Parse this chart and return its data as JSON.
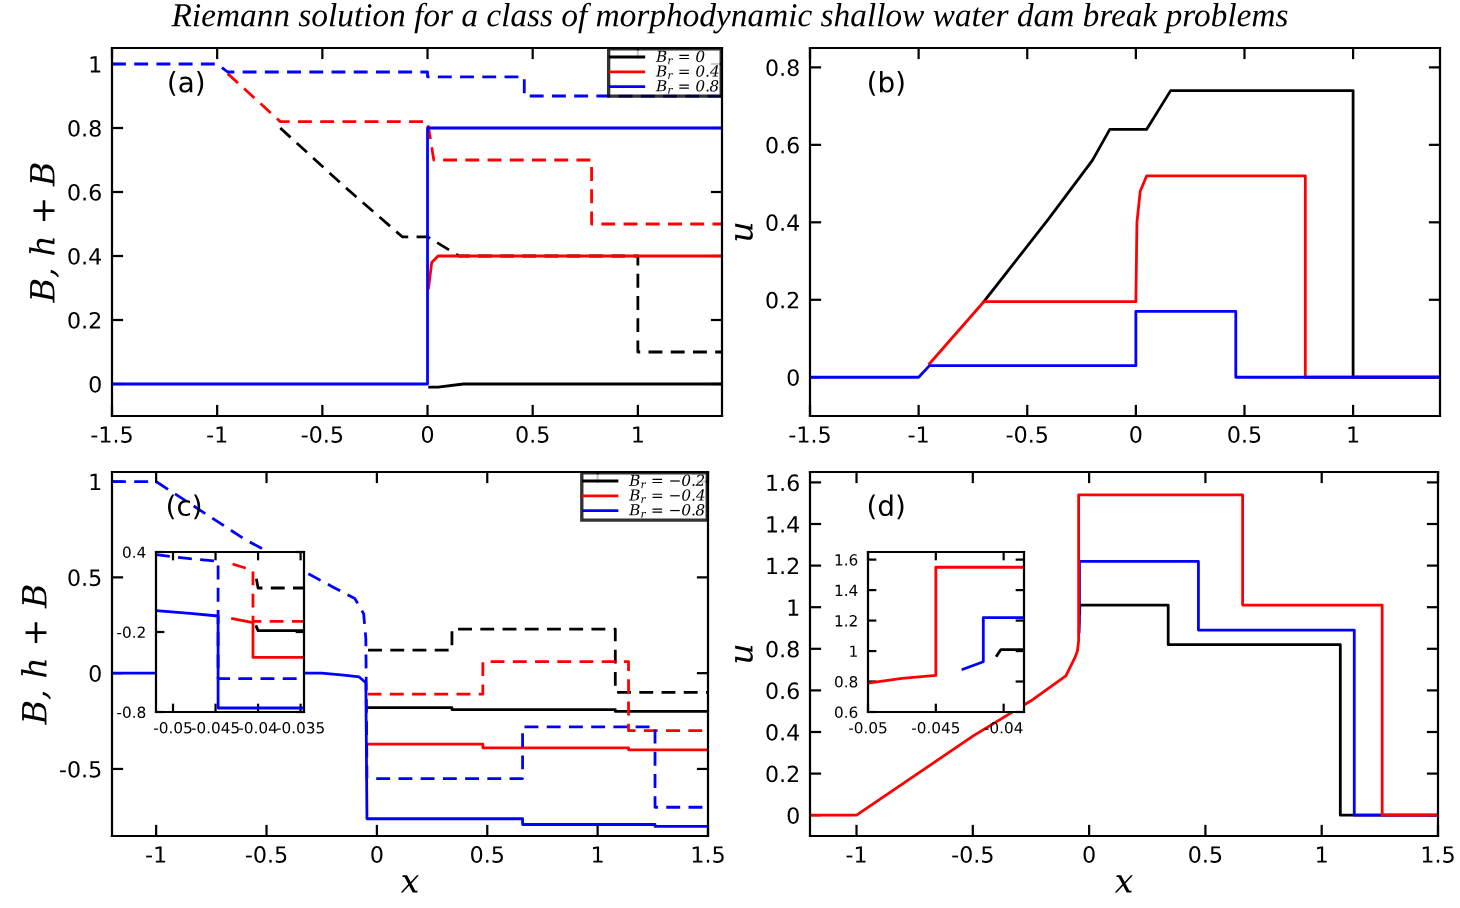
{
  "chart_data": [
    {
      "type": "other",
      "title": "Riemann solution for a class of morphodynamic shallow water dam break problems"
    },
    {
      "type": "line",
      "ylabel": "B, h + B",
      "annotations": [
        "(a)"
      ],
      "legend": "top right",
      "xlim": [
        -1.5,
        1.4
      ],
      "ylim": [
        -0.1,
        1.05
      ],
      "xticks": [
        -1.5,
        -1,
        -0.5,
        0,
        0.5,
        1
      ],
      "yticks": [
        0,
        0.2,
        0.4,
        0.6,
        0.8,
        1
      ],
      "series": [
        {
          "color": "#000000",
          "line_style": "dashed",
          "x": [
            -0.7,
            -0.4,
            -0.12,
            0,
            0.15,
            1,
            1,
            1.4
          ],
          "values": [
            0.8,
            0.62,
            0.46,
            0.46,
            0.4,
            0.4,
            0.1,
            0.1
          ]
        },
        {
          "name": "B$_{r}$ = 0",
          "color": "#000000",
          "line_style": "solid",
          "x": [
            0.01,
            0.05,
            0.17,
            1.4
          ],
          "values": [
            -0.01,
            -0.01,
            0,
            0
          ]
        },
        {
          "color": "#ff0000",
          "line_style": "dashed",
          "x": [
            -0.95,
            -0.7,
            0,
            0.03,
            0.78,
            0.78,
            1.4
          ],
          "values": [
            0.97,
            0.82,
            0.82,
            0.7,
            0.7,
            0.5,
            0.5
          ]
        },
        {
          "name": "B$_{r}$ = 0.4",
          "color": "#ff0000",
          "line_style": "solid",
          "x": [
            0.005,
            0.02,
            0.05,
            1.4
          ],
          "values": [
            0.3,
            0.38,
            0.4,
            0.4
          ]
        },
        {
          "color": "#0000ff",
          "line_style": "dashed",
          "x": [
            -1.5,
            -1,
            -0.95,
            0,
            0,
            0.46,
            0.46,
            1.4
          ],
          "values": [
            1,
            1,
            0.975,
            0.975,
            0.96,
            0.96,
            0.9,
            0.9
          ]
        },
        {
          "name": "B$_{r}$ = 0.8",
          "color": "#0000ff",
          "line_style": "solid",
          "x": [
            -1.5,
            0,
            0,
            1.4
          ],
          "values": [
            0,
            0,
            0.8,
            0.8
          ]
        }
      ]
    },
    {
      "type": "line",
      "ylabel": "u",
      "annotations": [
        "(b)"
      ],
      "xlim": [
        -1.5,
        1.4
      ],
      "ylim": [
        -0.1,
        0.85
      ],
      "xticks": [
        -1.5,
        -1,
        -0.5,
        0,
        0.5,
        1
      ],
      "yticks": [
        0,
        0.2,
        0.4,
        0.6,
        0.8
      ],
      "series": [
        {
          "color": "#000000",
          "line_style": "solid",
          "x": [
            -0.7,
            -0.4,
            -0.2,
            -0.12,
            0.05,
            0.16,
            1,
            1,
            1.4
          ],
          "values": [
            0.195,
            0.41,
            0.56,
            0.64,
            0.64,
            0.74,
            0.74,
            0,
            0
          ]
        },
        {
          "color": "#ff0000",
          "line_style": "solid",
          "x": [
            -0.95,
            -0.7,
            0,
            0.005,
            0.02,
            0.05,
            0.78,
            0.78,
            1.4
          ],
          "values": [
            0.035,
            0.195,
            0.195,
            0.4,
            0.48,
            0.52,
            0.52,
            0,
            0
          ]
        },
        {
          "color": "#0000ff",
          "line_style": "solid",
          "x": [
            -1.5,
            -1,
            -0.95,
            0,
            0,
            0.46,
            0.46,
            1.4
          ],
          "values": [
            0,
            0,
            0.03,
            0.03,
            0.17,
            0.17,
            0,
            0
          ]
        }
      ]
    },
    {
      "type": "line",
      "xlabel": "x",
      "ylabel": "B, h + B",
      "annotations": [
        "(c)"
      ],
      "legend": "top right",
      "xlim": [
        -1.2,
        1.5
      ],
      "ylim": [
        -0.85,
        1.05
      ],
      "xticks": [
        -1,
        -0.5,
        0,
        0.5,
        1,
        1.5
      ],
      "yticks": [
        -0.5,
        0,
        0.5,
        1
      ],
      "series": [
        {
          "color": "#000000",
          "line_style": "dashed",
          "x": [
            -0.04,
            0.34,
            0.34,
            1.08,
            1.08,
            1.5
          ],
          "values": [
            0.12,
            0.12,
            0.23,
            0.23,
            -0.1,
            -0.1
          ]
        },
        {
          "name": "B$_{r}$ = −0.2",
          "color": "#000000",
          "line_style": "solid",
          "x": [
            -0.04,
            0.34,
            0.34,
            1.08,
            1.08,
            1.5
          ],
          "values": [
            -0.18,
            -0.18,
            -0.19,
            -0.19,
            -0.2,
            -0.2
          ]
        },
        {
          "color": "#ff0000",
          "line_style": "dashed",
          "x": [
            -0.042,
            0.48,
            0.48,
            1.14,
            1.14,
            1.5
          ],
          "values": [
            -0.11,
            -0.11,
            0.06,
            0.06,
            -0.3,
            -0.3
          ]
        },
        {
          "name": "B$_{r}$ = −0.4",
          "color": "#ff0000",
          "line_style": "solid",
          "x": [
            -0.042,
            0.48,
            0.48,
            1.14,
            1.14,
            1.5
          ],
          "values": [
            -0.37,
            -0.37,
            -0.39,
            -0.39,
            -0.4,
            -0.4
          ]
        },
        {
          "color": "#0000ff",
          "line_style": "dashed",
          "x": [
            -1.2,
            -1,
            -0.8,
            -0.6,
            -0.2,
            -0.1,
            -0.06,
            -0.05,
            -0.045,
            0.66,
            0.66,
            1.26,
            1.26,
            1.5
          ],
          "values": [
            1,
            1,
            0.85,
            0.7,
            0.45,
            0.39,
            0.31,
            0.18,
            -0.55,
            -0.55,
            -0.28,
            -0.28,
            -0.7,
            -0.7
          ]
        },
        {
          "name": "B$_{r}$ = −0.8",
          "color": "#0000ff",
          "line_style": "solid",
          "x": [
            -1.2,
            -0.25,
            -0.15,
            -0.08,
            -0.05,
            -0.045,
            0.66,
            0.66,
            1.26,
            1.26,
            1.5
          ],
          "values": [
            0,
            0,
            -0.01,
            -0.02,
            -0.05,
            -0.76,
            -0.76,
            -0.79,
            -0.79,
            -0.8,
            -0.8
          ]
        }
      ]
    },
    {
      "type": "line",
      "xlim": [
        -0.052,
        -0.0346
      ],
      "ylim": [
        -0.8,
        0.4
      ],
      "xticks": [
        -0.05,
        -0.045,
        -0.04,
        -0.035
      ],
      "yticks": [
        -0.8,
        -0.2,
        0.4
      ],
      "series": [
        {
          "color": "#000000",
          "line_style": "dashed",
          "x": [
            -0.0402,
            -0.04,
            -0.0346
          ],
          "values": [
            0.2,
            0.13,
            0.13
          ]
        },
        {
          "color": "#000000",
          "line_style": "solid",
          "x": [
            -0.0402,
            -0.04,
            -0.0346
          ],
          "values": [
            -0.16,
            -0.19,
            -0.19
          ]
        },
        {
          "color": "#ff0000",
          "line_style": "dashed",
          "x": [
            -0.043,
            -0.0415,
            -0.0406,
            -0.0406,
            -0.0346
          ],
          "values": [
            0.31,
            0.28,
            0.26,
            -0.12,
            -0.12
          ]
        },
        {
          "color": "#ff0000",
          "line_style": "solid",
          "x": [
            -0.043,
            -0.0406,
            -0.0406,
            -0.0346
          ],
          "values": [
            -0.1,
            -0.13,
            -0.39,
            -0.39
          ]
        },
        {
          "color": "#0000ff",
          "line_style": "dashed",
          "x": [
            -0.052,
            -0.048,
            -0.0447,
            -0.0447,
            -0.0346
          ],
          "values": [
            0.38,
            0.35,
            0.33,
            -0.55,
            -0.55
          ]
        },
        {
          "color": "#0000ff",
          "line_style": "solid",
          "x": [
            -0.052,
            -0.048,
            -0.0447,
            -0.0447,
            -0.0346
          ],
          "values": [
            -0.04,
            -0.06,
            -0.08,
            -0.77,
            -0.77
          ]
        }
      ]
    },
    {
      "type": "line",
      "xlabel": "x",
      "ylabel": "u",
      "annotations": [
        "(d)"
      ],
      "xlim": [
        -1.2,
        1.5
      ],
      "ylim": [
        -0.1,
        1.65
      ],
      "xticks": [
        -1,
        -0.5,
        0,
        0.5,
        1,
        1.5
      ],
      "yticks": [
        0,
        0.2,
        0.4,
        0.6,
        0.8,
        1,
        1.2,
        1.4,
        1.6
      ],
      "series": [
        {
          "color": "#000000",
          "line_style": "solid",
          "x": [
            -0.0405,
            -0.04,
            0.34,
            0.34,
            1.08,
            1.08,
            1.5
          ],
          "values": [
            0.97,
            1.01,
            1.01,
            0.82,
            0.82,
            0,
            0
          ]
        },
        {
          "color": "#0000ff",
          "line_style": "solid",
          "x": [
            -0.043,
            -0.0415,
            -0.0415,
            0.47,
            0.47,
            1.14,
            1.14,
            1.5
          ],
          "values": [
            0.88,
            0.93,
            1.22,
            1.22,
            0.89,
            0.89,
            0,
            0
          ]
        },
        {
          "color": "#ff0000",
          "line_style": "solid",
          "x": [
            -1.2,
            -1,
            -0.5,
            -0.25,
            -0.1,
            -0.06,
            -0.05,
            -0.045,
            -0.045,
            0.66,
            0.66,
            1.26,
            1.26,
            1.5
          ],
          "values": [
            0,
            0,
            0.38,
            0.55,
            0.67,
            0.76,
            0.79,
            0.84,
            1.54,
            1.54,
            1.01,
            1.01,
            0,
            0
          ]
        }
      ]
    },
    {
      "type": "line",
      "xlim": [
        -0.05,
        -0.0385
      ],
      "ylim": [
        0.6,
        1.65
      ],
      "xticks": [
        -0.05,
        -0.045,
        -0.04
      ],
      "yticks": [
        0.6,
        0.8,
        1,
        1.2,
        1.4,
        1.6
      ],
      "series": [
        {
          "color": "#000000",
          "line_style": "solid",
          "x": [
            -0.0405,
            -0.0402,
            -0.0385
          ],
          "values": [
            0.97,
            1.01,
            1.01
          ]
        },
        {
          "color": "#0000ff",
          "line_style": "solid",
          "x": [
            -0.043,
            -0.0415,
            -0.0415,
            -0.0385
          ],
          "values": [
            0.88,
            0.93,
            1.22,
            1.22
          ]
        },
        {
          "color": "#ff0000",
          "line_style": "solid",
          "x": [
            -0.05,
            -0.0475,
            -0.045,
            -0.045,
            -0.0385
          ],
          "values": [
            0.79,
            0.82,
            0.84,
            1.55,
            1.55
          ]
        }
      ]
    }
  ]
}
